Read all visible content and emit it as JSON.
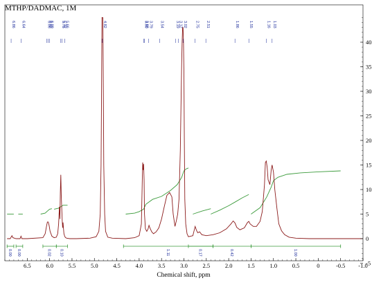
{
  "chart_data": {
    "type": "line",
    "title": "MTHP/DADMAC, 1M",
    "xlabel": "Chemical shift, ppm",
    "ylabel": "",
    "xlim": [
      7.0,
      -1.0
    ],
    "ylim": [
      -5,
      45
    ],
    "x_ticks": [
      "6.5",
      "6.0",
      "5.5",
      "5.0",
      "4.5",
      "4.0",
      "3.5",
      "3.0",
      "2.5",
      "2.0",
      "1.5",
      "1.0",
      "0.5",
      "0",
      "-0.5",
      "-1.0"
    ],
    "x_tick_values": [
      6.5,
      6.0,
      5.5,
      5.0,
      4.5,
      4.0,
      3.5,
      3.0,
      2.5,
      2.0,
      1.5,
      1.0,
      0.5,
      0,
      -0.5,
      -1.0
    ],
    "y_ticks": [
      "-5",
      "0",
      "5",
      "10",
      "15",
      "20",
      "25",
      "30",
      "35",
      "40"
    ],
    "y_tick_values": [
      -5,
      0,
      5,
      10,
      15,
      20,
      25,
      30,
      35,
      40
    ],
    "series": [
      {
        "color": "#8b1a1a",
        "x": [
          6.95,
          6.88,
          6.86,
          6.84,
          6.82,
          6.75,
          6.66,
          6.64,
          6.62,
          6.5,
          6.15,
          6.1,
          6.07,
          6.05,
          6.03,
          6.01,
          5.99,
          5.95,
          5.9,
          5.85,
          5.82,
          5.8,
          5.78,
          5.77,
          5.76,
          5.75,
          5.74,
          5.72,
          5.71,
          5.7,
          5.69,
          5.68,
          5.66,
          5.64,
          5.62,
          5.55,
          5.4,
          5.1,
          4.96,
          4.9,
          4.87,
          4.85,
          4.84,
          4.83,
          4.82,
          4.81,
          4.8,
          4.79,
          4.77,
          4.75,
          4.7,
          4.6,
          4.3,
          4.1,
          4.0,
          3.95,
          3.93,
          3.92,
          3.91,
          3.9,
          3.89,
          3.88,
          3.86,
          3.83,
          3.8,
          3.78,
          3.76,
          3.72,
          3.68,
          3.62,
          3.56,
          3.5,
          3.44,
          3.38,
          3.32,
          3.27,
          3.24,
          3.2,
          3.17,
          3.14,
          3.11,
          3.08,
          3.06,
          3.05,
          3.04,
          3.03,
          3.02,
          3.01,
          3.0,
          2.99,
          2.98,
          2.96,
          2.93,
          2.9,
          2.85,
          2.8,
          2.75,
          2.72,
          2.69,
          2.65,
          2.6,
          2.5,
          2.35,
          2.2,
          2.05,
          1.95,
          1.9,
          1.86,
          1.82,
          1.75,
          1.65,
          1.58,
          1.55,
          1.52,
          1.45,
          1.38,
          1.3,
          1.25,
          1.2,
          1.18,
          1.16,
          1.14,
          1.12,
          1.08,
          1.05,
          1.03,
          1.0,
          0.97,
          0.92,
          0.88,
          0.82,
          0.75,
          0.65,
          0.5,
          0.2,
          -0.2,
          -0.6,
          -1.0
        ],
        "y": [
          0.0,
          0.0,
          0.3,
          0.6,
          0.2,
          0.0,
          0.0,
          0.5,
          0.0,
          0.0,
          0.2,
          1.0,
          2.5,
          3.4,
          3.4,
          2.6,
          1.5,
          0.5,
          0.2,
          0.3,
          1.0,
          3.0,
          6.5,
          4.0,
          9.5,
          13.0,
          9.0,
          4.0,
          2.2,
          3.3,
          2.0,
          1.0,
          0.4,
          0.2,
          0.1,
          0.0,
          0.0,
          0.1,
          0.4,
          1.5,
          5.0,
          15.0,
          30.0,
          45.0,
          45.0,
          45.0,
          30.0,
          15.0,
          5.0,
          1.5,
          0.3,
          0.1,
          0.0,
          0.2,
          0.6,
          3.0,
          12.0,
          15.5,
          14.0,
          15.2,
          12.0,
          5.0,
          2.0,
          1.5,
          2.0,
          2.7,
          2.2,
          1.4,
          1.0,
          1.4,
          2.2,
          4.0,
          6.5,
          8.8,
          9.4,
          8.5,
          5.0,
          2.5,
          3.6,
          5.0,
          8.0,
          18.0,
          30.0,
          36.0,
          40.0,
          43.0,
          43.0,
          40.0,
          34.0,
          20.0,
          8.0,
          3.0,
          1.0,
          0.4,
          0.5,
          0.6,
          2.5,
          1.7,
          1.2,
          1.4,
          0.8,
          0.6,
          0.8,
          1.2,
          2.0,
          3.0,
          3.6,
          3.2,
          2.3,
          1.8,
          2.2,
          3.3,
          3.5,
          3.0,
          2.5,
          2.5,
          3.5,
          5.5,
          11.0,
          15.5,
          15.8,
          14.5,
          12.0,
          11.0,
          14.0,
          15.0,
          13.5,
          10.0,
          6.0,
          3.0,
          1.6,
          0.8,
          0.3,
          0.1,
          0.0,
          0.0,
          0.0,
          0.0
        ]
      }
    ],
    "integral_curves": {
      "color": "#3a9a3a",
      "segments": [
        {
          "x": [
            6.95,
            6.8
          ],
          "y": [
            5.0,
            5.0
          ]
        },
        {
          "x": [
            6.7,
            6.6
          ],
          "y": [
            5.0,
            5.0
          ]
        },
        {
          "x": [
            6.2,
            6.1,
            6.05,
            6.0,
            5.95
          ],
          "y": [
            5.0,
            5.2,
            5.6,
            6.0,
            6.1
          ]
        },
        {
          "x": [
            5.9,
            5.8,
            5.75,
            5.7,
            5.6
          ],
          "y": [
            6.0,
            6.2,
            6.5,
            6.8,
            6.8
          ]
        },
        {
          "x": [
            4.3,
            4.1,
            4.0,
            3.9,
            3.85,
            3.7,
            3.5,
            3.3,
            3.15,
            3.05,
            3.0,
            2.95,
            2.9
          ],
          "y": [
            5.0,
            5.2,
            5.5,
            6.0,
            7.0,
            8.0,
            8.6,
            9.8,
            11.0,
            12.5,
            13.8,
            14.2,
            14.4
          ]
        },
        {
          "x": [
            2.8,
            2.6,
            2.4
          ],
          "y": [
            5.0,
            5.6,
            6.1
          ]
        },
        {
          "x": [
            2.4,
            2.2,
            2.0,
            1.85,
            1.7,
            1.55
          ],
          "y": [
            5.0,
            5.8,
            6.7,
            7.5,
            8.3,
            9.0
          ]
        },
        {
          "x": [
            1.5,
            1.3,
            1.15,
            1.05,
            1.0,
            0.9,
            0.7,
            0.4,
            0.0,
            -0.5
          ],
          "y": [
            5.0,
            6.3,
            8.5,
            10.5,
            11.8,
            12.5,
            13.1,
            13.4,
            13.6,
            13.8
          ]
        }
      ]
    },
    "peak_labels": [
      "6.86",
      "6.64",
      "6.06",
      "6.03",
      "6.00",
      "5.75",
      "5.72",
      "5.66",
      "4.82",
      "3.90",
      "3.88",
      "3.79",
      "3.54",
      "3.19",
      "3.12",
      "3.02",
      "2.75",
      "2.51",
      "1.86",
      "1.55",
      "1.16",
      "1.03"
    ],
    "peak_label_ppm": [
      6.86,
      6.64,
      6.06,
      6.03,
      6.0,
      5.75,
      5.72,
      5.66,
      4.82,
      3.9,
      3.88,
      3.79,
      3.54,
      3.19,
      3.12,
      3.02,
      2.75,
      2.51,
      1.86,
      1.55,
      1.16,
      1.03
    ],
    "integrals": [
      {
        "from": 6.95,
        "to": 6.8,
        "label": "0.00"
      },
      {
        "from": 6.75,
        "to": 6.6,
        "label": "0.00"
      },
      {
        "from": 6.15,
        "to": 5.85,
        "label": "0.02"
      },
      {
        "from": 5.85,
        "to": 5.6,
        "label": "0.10"
      },
      {
        "from": 4.35,
        "to": 2.35,
        "label": "1.11"
      },
      {
        "from": 2.9,
        "to": 2.35,
        "label": "0.17"
      },
      {
        "from": 2.35,
        "to": 1.5,
        "label": "0.42"
      },
      {
        "from": 1.5,
        "to": -0.5,
        "label": "1.00"
      }
    ]
  }
}
